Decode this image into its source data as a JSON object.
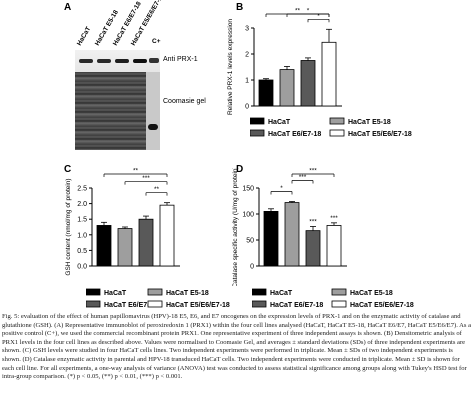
{
  "panelA": {
    "letter": "A",
    "lanes": [
      "HaCaT",
      "HaCaT E5-18",
      "HaCaT E6/E7-18",
      "HaCaT E5/E6/E7-18",
      "C+"
    ],
    "blot_label": "Anti PRX-1",
    "gel_label": "Coomasie gel"
  },
  "panelC_letter": "C",
  "panelB_letter": "B",
  "panelD_letter": "D",
  "colors": {
    "series": [
      "#000000",
      "#9e9e9e",
      "#595959",
      "#ffffff"
    ]
  },
  "legend": [
    "HaCaT",
    "HaCaT E5-18",
    "HaCaT E6/E7-18",
    "HaCaT E5/E6/E7-18"
  ],
  "chart_data": [
    {
      "id": "B",
      "type": "bar",
      "ylabel": "Relative PRX-1 levels expression",
      "ylim": [
        0,
        3
      ],
      "yticks": [
        "0",
        "1",
        "2",
        "3"
      ],
      "categories": [
        "HaCaT",
        "HaCaT E5-18",
        "HaCaT E6/E7-18",
        "HaCaT E5/E6/E7-18"
      ],
      "values": [
        1.0,
        1.4,
        1.75,
        2.45
      ],
      "errors": [
        0.05,
        0.12,
        0.1,
        0.5
      ],
      "significance": [
        {
          "from": 2,
          "to": 3,
          "label": "*"
        },
        {
          "from": 1,
          "to": 3,
          "label": "*"
        },
        {
          "from": 0,
          "to": 3,
          "label": "**"
        }
      ],
      "legend_position": "bottom"
    },
    {
      "id": "C",
      "type": "bar",
      "ylabel": "GSH content (nmol/mg of protein)",
      "ylim": [
        0,
        2.5
      ],
      "yticks": [
        "0.0",
        "0.5",
        "1.0",
        "1.5",
        "2.0",
        "2.5"
      ],
      "categories": [
        "HaCaT",
        "HaCaT E5-18",
        "HaCaT E6/E7-18",
        "HaCaT E5/E6/E7-18"
      ],
      "values": [
        1.3,
        1.2,
        1.5,
        1.95
      ],
      "errors": [
        0.1,
        0.05,
        0.1,
        0.08
      ],
      "significance": [
        {
          "from": 2,
          "to": 3,
          "label": "**"
        },
        {
          "from": 1,
          "to": 3,
          "label": "***"
        },
        {
          "from": 0,
          "to": 3,
          "label": "**"
        }
      ],
      "legend_position": "bottom"
    },
    {
      "id": "D",
      "type": "bar",
      "ylabel": "Catalase specific activity (U/mg of protein)",
      "ylim": [
        0,
        150
      ],
      "yticks": [
        "0",
        "50",
        "100",
        "150"
      ],
      "categories": [
        "HaCaT",
        "HaCaT E5-18",
        "HaCaT E6/E7-18",
        "HaCaT E5/E6/E7-18"
      ],
      "values": [
        105,
        122,
        68,
        78
      ],
      "errors": [
        5,
        2,
        8,
        5
      ],
      "bar_labels": [
        "",
        "",
        "***",
        "***"
      ],
      "significance": [
        {
          "from": 0,
          "to": 1,
          "label": "*"
        },
        {
          "from": 1,
          "to": 2,
          "label": "***"
        },
        {
          "from": 1,
          "to": 3,
          "label": "***"
        }
      ],
      "legend_position": "bottom"
    }
  ],
  "caption": "Fig. 5: evaluation of the effect of human papillomavirus (HPV)-18 E5, E6, and E7 oncogenes on the expression levels of PRX-1 and on the enzymatic activity of catalase and glutathione (GSH). (A) Representative immunoblot of peroxiredoxin 1 (PRX1) within the four cell lines analysed (HaCaT, HaCaT E5-18, HaCaT E6/E7, HaCaT E5/E6/E7). As a positive control (C+), we used the commercial recombinant protein PRX1. One representative experiment of three independent assays is shown. (B) Densitometric analysis of PRX1 levels in the four cell lines as described above. Values were normalised to Coomasie Gel, and averages ± standard deviations (SDs) of three independent experiments are shown. (C) GSH levels were studied in four HaCaT cells lines. Two independent experiments were performed in triplicate. Mean ± SDs of two independent experiments is shown. (D) Catalase enzymatic activity in parental and HPV-18 transduced HaCaT cells. Two independent experiments were conducted in triplicate. Mean ± SD is shown for each cell line. For all experiments, a one-way analysis of variance (ANOVA) test was conducted to assess statistical significance among groups along with Tukey's HSD test for intra-group comparison. (*) p < 0.05, (**) p < 0.01, (***) p < 0.001."
}
